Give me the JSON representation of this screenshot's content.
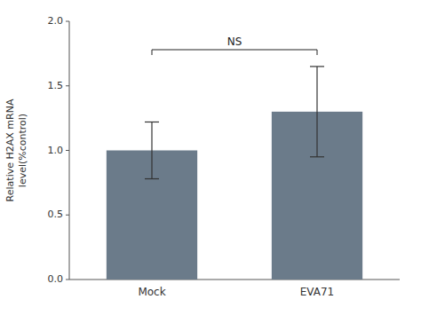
{
  "chart_data": {
    "type": "bar",
    "categories": [
      "Mock",
      "EVA71"
    ],
    "values": [
      1.0,
      1.3
    ],
    "errors": [
      0.22,
      0.35
    ],
    "color": "#6b7b8a",
    "y_label": "Relative H2AX mRNA\nlevel(%control)",
    "ylim": [
      0,
      2.0
    ],
    "yticks": [
      {
        "value": 0,
        "label": "0.0"
      },
      0.5,
      {
        "value": 1.0,
        "label": "1.0"
      },
      1.5,
      {
        "value": 2.0,
        "label": "2.0"
      }
    ],
    "annotations": [
      {
        "text": "NS",
        "x": [
          0,
          1
        ],
        "y": 1.78
      }
    ]
  }
}
